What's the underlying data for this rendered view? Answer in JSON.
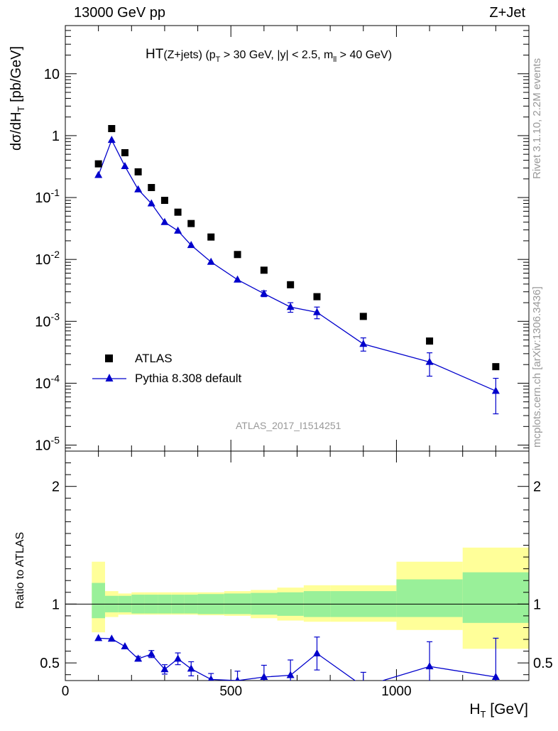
{
  "header": {
    "energy_label": "13000 GeV pp",
    "process_label": "Z+Jet"
  },
  "side": {
    "rivet_label": "Rivet 3.1.10,  2.2M events",
    "mcplots_label": "mcplots.cern.ch [arXiv:1306.3436]"
  },
  "plot_title": {
    "main": "HT",
    "sub": "(Z+jets)",
    "cuts_a": " (p",
    "cuts_a_sub": "T",
    "cuts_b": " > 30 GeV, |y| < 2.5, m",
    "cuts_b_sub": "ll",
    "cuts_c": " > 40 GeV)"
  },
  "watermark": "ATLAS_2017_I1514251",
  "legend": {
    "data_label": "ATLAS",
    "mc_label": "Pythia 8.308 default"
  },
  "axes": {
    "main_ylabel": "dσ/dH",
    "main_ylabel_sub": "T",
    "main_ylabel_unit": " [pb/GeV]",
    "ratio_ylabel": "Ratio to ATLAS",
    "xlabel": "H",
    "xlabel_sub": "T",
    "xlabel_unit": " [GeV]"
  },
  "chart_data": [
    {
      "type": "scatter",
      "panel": "main",
      "yscale": "log",
      "xlim": [
        0,
        1400
      ],
      "ylim": [
        8e-06,
        60
      ],
      "x_ticks": [
        0,
        500,
        1000
      ],
      "y_tick_labels": [
        "10",
        "1",
        "10^-1",
        "10^-2",
        "10^-3",
        "10^-4",
        "10^-5"
      ],
      "series": [
        {
          "name": "ATLAS",
          "marker": "square",
          "color": "#000000",
          "x": [
            100,
            140,
            180,
            220,
            260,
            300,
            340,
            380,
            440,
            520,
            600,
            680,
            760,
            900,
            1100,
            1300
          ],
          "y": [
            0.35,
            1.3,
            0.53,
            0.26,
            0.145,
            0.09,
            0.058,
            0.038,
            0.023,
            0.012,
            0.0067,
            0.0039,
            0.0025,
            0.0012,
            0.00048,
            0.000185
          ]
        },
        {
          "name": "Pythia 8.308 default",
          "marker": "triangle",
          "color": "#0000cc",
          "x": [
            100,
            140,
            180,
            220,
            260,
            300,
            340,
            380,
            440,
            520,
            600,
            680,
            760,
            900,
            1100,
            1300
          ],
          "y": [
            0.23,
            0.85,
            0.32,
            0.135,
            0.08,
            0.04,
            0.029,
            0.017,
            0.0091,
            0.0047,
            0.0028,
            0.0017,
            0.0014,
            0.00043,
            0.00022,
            7.5e-05
          ],
          "err_low": [
            0,
            0,
            0,
            0,
            0,
            0,
            0,
            0,
            0,
            0,
            0.0003,
            0.0003,
            0.0003,
            0.0001,
            9e-05,
            4.3e-05
          ],
          "err_high": [
            0,
            0,
            0,
            0,
            0,
            0,
            0,
            0,
            0,
            0,
            0.0003,
            0.0003,
            0.0003,
            0.00011,
            9e-05,
            4.5e-05
          ]
        }
      ]
    },
    {
      "type": "line",
      "panel": "ratio",
      "xlim": [
        0,
        1400
      ],
      "ylim": [
        0.35,
        2.3
      ],
      "y_ticks": [
        0.5,
        1,
        2
      ],
      "x_ticks": [
        0,
        500,
        1000
      ],
      "bin_edges": [
        80,
        120,
        160,
        200,
        240,
        280,
        320,
        360,
        400,
        480,
        560,
        640,
        720,
        800,
        1000,
        1200,
        1400
      ],
      "band_inner": {
        "color": "#99f099",
        "low": [
          0.88,
          0.93,
          0.93,
          0.92,
          0.92,
          0.92,
          0.92,
          0.92,
          0.915,
          0.915,
          0.91,
          0.9,
          0.89,
          0.89,
          0.89,
          0.84
        ],
        "high": [
          1.18,
          1.07,
          1.07,
          1.08,
          1.08,
          1.08,
          1.08,
          1.08,
          1.085,
          1.09,
          1.095,
          1.1,
          1.11,
          1.11,
          1.21,
          1.27
        ]
      },
      "band_outer": {
        "color": "#ffff99",
        "low": [
          0.76,
          0.89,
          0.91,
          0.91,
          0.91,
          0.91,
          0.91,
          0.91,
          0.905,
          0.9,
          0.88,
          0.86,
          0.85,
          0.85,
          0.78,
          0.62
        ],
        "high": [
          1.36,
          1.11,
          1.09,
          1.1,
          1.1,
          1.1,
          1.1,
          1.1,
          1.1,
          1.11,
          1.12,
          1.14,
          1.16,
          1.16,
          1.36,
          1.48
        ]
      },
      "series": [
        {
          "name": "Pythia 8.308 default",
          "color": "#0000cc",
          "x": [
            100,
            140,
            180,
            220,
            260,
            300,
            340,
            380,
            440,
            520,
            600,
            680,
            760,
            900,
            1100,
            1300
          ],
          "y": [
            0.71,
            0.705,
            0.64,
            0.535,
            0.575,
            0.445,
            0.535,
            0.45,
            0.36,
            0.35,
            0.38,
            0.395,
            0.58,
            0.3,
            0.47,
            0.38
          ],
          "err": [
            0,
            0,
            0,
            0.02,
            0.03,
            0.04,
            0.05,
            0.06,
            0.05,
            0.08,
            0.1,
            0.13,
            0.14,
            0.12,
            0.21,
            0.33
          ]
        }
      ]
    }
  ]
}
